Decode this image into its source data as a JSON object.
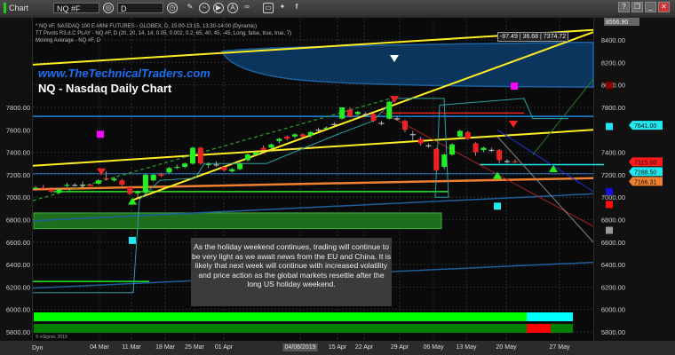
{
  "window": {
    "app_label": "Chart",
    "symbol": "NQ #F",
    "interval": "D",
    "help": "?",
    "controls": [
      "restore",
      "minimize",
      "maximize",
      "close"
    ]
  },
  "study_lines": [
    "* NQ #F, NASDAQ 100 E-MINI FUTURES - GLOBEX, D, 15:00-13:15, 13:30-14:00 (Dynamic)",
    "TT Pivots R3.d.C PLAY - NQ #F, D (20, 20, 14, 14, 0.05, 0.002, 0.2, 65, 40, 45, -45, Long, false, true, true, 7)",
    "Moving Average - NQ #F, D"
  ],
  "watermark_site": "www.TheTechnicalTraders.com",
  "chart_title": "NQ - Nasdaq Daily Chart",
  "readout": "-87.49 | 36.68 | 7374.72",
  "note": "As the holiday weekend continues, trading will continue to be very light as we await news from the EU and China.  It is likely that next week will continue with increased volatility and price action as the global markets resettle after the long US holiday weekend.",
  "copyright": "© eSignal, 2019",
  "dyn_label": "Dyn",
  "colors": {
    "up": "#22ee22",
    "down": "#ee2222",
    "background": "#0a0a0a",
    "accent_site": "#1e6ff0"
  },
  "chart_data": {
    "type": "candlestick",
    "title": "NQ - Nasdaq Daily Chart",
    "ylim": [
      5700,
      8556.9
    ],
    "y_ticks": [
      8400,
      8200,
      8000,
      7800,
      7400,
      7200,
      7000,
      6800,
      6600,
      6400,
      6200,
      6000,
      5800
    ],
    "y_ticks_left": [
      7800,
      7600,
      7400,
      7200,
      7000,
      6800,
      6600,
      6400,
      6200,
      6000,
      5800
    ],
    "top_price": "8556.90",
    "x_ticks": [
      "04 Mar",
      "11 Mar",
      "18 Mar",
      "25 Mar",
      "01 Apr",
      "04/08/2019",
      "15 Apr",
      "22 Apr",
      "29 Apr",
      "06 May",
      "13 May",
      "20 May",
      "27 May"
    ],
    "price_tags": [
      {
        "label": "7641.00",
        "color": "#22e8f0",
        "price": 7641
      },
      {
        "label": "7315.00",
        "color": "#ff1a1a",
        "price": 7315
      },
      {
        "label": "7288.50",
        "color": "#22e8f0",
        "price": 7288.5
      },
      {
        "label": "7166.31",
        "color": "#f08030",
        "price": 7166.31
      }
    ],
    "candles": [
      [
        7080,
        7100,
        7060,
        7085
      ],
      [
        7085,
        7110,
        7065,
        7080
      ],
      [
        7070,
        7085,
        7040,
        7050
      ],
      [
        7040,
        7080,
        7030,
        7070
      ],
      [
        7105,
        7130,
        7090,
        7110
      ],
      [
        7110,
        7125,
        7095,
        7108
      ],
      [
        7110,
        7140,
        7090,
        7112
      ],
      [
        7112,
        7118,
        7095,
        7100
      ],
      [
        7120,
        7160,
        7110,
        7150
      ],
      [
        7170,
        7230,
        7150,
        7160
      ],
      [
        7150,
        7180,
        7140,
        7165
      ],
      [
        7150,
        7160,
        7100,
        7110
      ],
      [
        7090,
        7100,
        7020,
        7030
      ],
      [
        7040,
        7060,
        7000,
        7045
      ],
      [
        7040,
        7210,
        7030,
        7200
      ],
      [
        7150,
        7210,
        7140,
        7200
      ],
      [
        7205,
        7215,
        7180,
        7190
      ],
      [
        7220,
        7270,
        7210,
        7260
      ],
      [
        7265,
        7290,
        7250,
        7270
      ],
      [
        7270,
        7310,
        7260,
        7300
      ],
      [
        7300,
        7450,
        7290,
        7440
      ],
      [
        7440,
        7450,
        7290,
        7300
      ],
      [
        7290,
        7310,
        7260,
        7295
      ],
      [
        7290,
        7320,
        7270,
        7292
      ],
      [
        7270,
        7280,
        7230,
        7240
      ],
      [
        7230,
        7260,
        7220,
        7250
      ],
      [
        7250,
        7310,
        7240,
        7300
      ],
      [
        7330,
        7390,
        7320,
        7380
      ],
      [
        7380,
        7410,
        7370,
        7400
      ],
      [
        7440,
        7460,
        7410,
        7420
      ],
      [
        7440,
        7480,
        7420,
        7470
      ],
      [
        7500,
        7530,
        7480,
        7520
      ],
      [
        7540,
        7550,
        7510,
        7520
      ],
      [
        7540,
        7570,
        7520,
        7560
      ],
      [
        7560,
        7570,
        7530,
        7540
      ],
      [
        7550,
        7590,
        7530,
        7580
      ],
      [
        7600,
        7620,
        7580,
        7602
      ],
      [
        7610,
        7630,
        7600,
        7620
      ],
      [
        7650,
        7670,
        7630,
        7652
      ],
      [
        7700,
        7800,
        7690,
        7800
      ],
      [
        7780,
        7800,
        7710,
        7720
      ],
      [
        7740,
        7770,
        7730,
        7760
      ],
      [
        7740,
        7760,
        7720,
        7742
      ],
      [
        7740,
        7760,
        7670,
        7680
      ],
      [
        7660,
        7680,
        7640,
        7662
      ],
      [
        7700,
        7860,
        7690,
        7850
      ],
      [
        7700,
        7720,
        7680,
        7702
      ],
      [
        7680,
        7690,
        7580,
        7600
      ],
      [
        7560,
        7590,
        7500,
        7562
      ],
      [
        7520,
        7540,
        7460,
        7480
      ],
      [
        7460,
        7480,
        7440,
        7462
      ],
      [
        7430,
        7440,
        7230,
        7240
      ],
      [
        7270,
        7390,
        7250,
        7380
      ],
      [
        7380,
        7480,
        7370,
        7470
      ],
      [
        7540,
        7600,
        7520,
        7590
      ],
      [
        7580,
        7590,
        7510,
        7520
      ],
      [
        7480,
        7490,
        7370,
        7400
      ],
      [
        7420,
        7450,
        7400,
        7440
      ],
      [
        7420,
        7440,
        7400,
        7422
      ],
      [
        7420,
        7430,
        7300,
        7330
      ],
      [
        7320,
        7340,
        7300,
        7322
      ],
      [
        7320,
        7335,
        7305,
        7315
      ]
    ]
  }
}
